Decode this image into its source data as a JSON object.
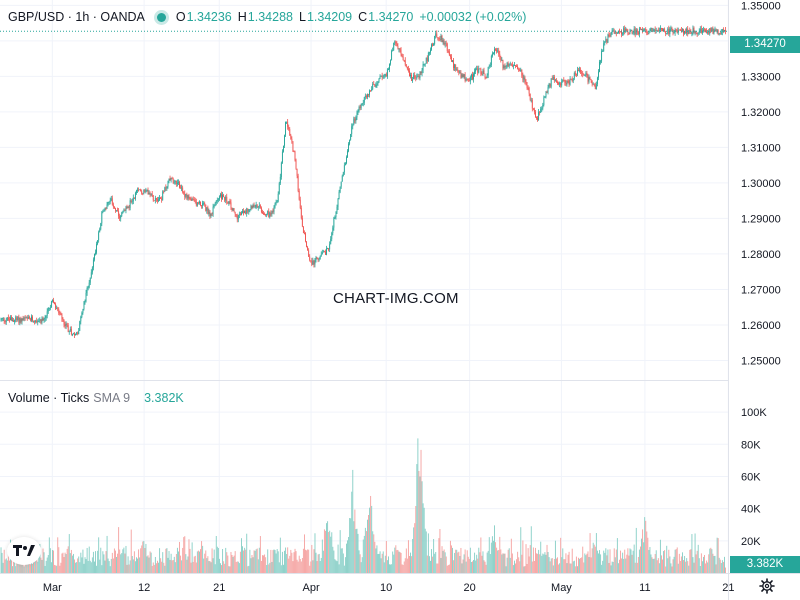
{
  "header": {
    "symbol": "GBP/USD · 1h · OANDA",
    "open_label": "O",
    "open": "1.34236",
    "high_label": "H",
    "high": "1.34288",
    "low_label": "L",
    "low": "1.34209",
    "close_label": "C",
    "close": "1.34270",
    "change": "+0.00032 (+0.02%)"
  },
  "volume_legend": {
    "label": "Volume · Ticks",
    "indicator": "SMA 9",
    "value": "3.382K"
  },
  "watermark": "CHART-IMG.COM",
  "last_price_tag": "1.34270",
  "last_volume_tag": "3.382K",
  "colors": {
    "up": "#26a69a",
    "down": "#ef5350",
    "grid": "#f0f3fa",
    "text": "#131722",
    "volume_up": "#8ad0c8",
    "volume_down": "#f5a5a3"
  },
  "chart_data": {
    "type": "candlestick",
    "title": "GBP/USD · 1h · OANDA",
    "price_axis": {
      "ylim": [
        1.2445,
        1.3515
      ],
      "ticks": [
        "1.25000",
        "1.26000",
        "1.27000",
        "1.28000",
        "1.29000",
        "1.30000",
        "1.31000",
        "1.32000",
        "1.33000",
        "1.34000",
        "1.35000"
      ]
    },
    "volume_axis": {
      "ylim": [
        0,
        115000
      ],
      "ticks": [
        "20K",
        "40K",
        "60K",
        "80K",
        "100K"
      ]
    },
    "x_ticks": [
      "Mar",
      "12",
      "21",
      "Apr",
      "10",
      "20",
      "May",
      "11",
      "21"
    ],
    "grid": true,
    "price_path": [
      {
        "x": "Feb 28",
        "y": 1.2615
      },
      {
        "x": "Mar 1",
        "y": 1.2665
      },
      {
        "x": "Mar 2",
        "y": 1.2625
      },
      {
        "x": "Mar 3",
        "y": 1.2585
      },
      {
        "x": "Mar 4",
        "y": 1.2575
      },
      {
        "x": "Mar 5",
        "y": 1.268
      },
      {
        "x": "Mar 6",
        "y": 1.279
      },
      {
        "x": "Mar 7",
        "y": 1.292
      },
      {
        "x": "Mar 8",
        "y": 1.295
      },
      {
        "x": "Mar 9",
        "y": 1.2905
      },
      {
        "x": "Mar 10",
        "y": 1.293
      },
      {
        "x": "Mar 11",
        "y": 1.297
      },
      {
        "x": "Mar 12",
        "y": 1.298
      },
      {
        "x": "Mar 13",
        "y": 1.296
      },
      {
        "x": "Mar 14",
        "y": 1.2955
      },
      {
        "x": "Mar 15",
        "y": 1.301
      },
      {
        "x": "Mar 16",
        "y": 1.3005
      },
      {
        "x": "Mar 17",
        "y": 1.296
      },
      {
        "x": "Mar 18",
        "y": 1.2945
      },
      {
        "x": "Mar 19",
        "y": 1.294
      },
      {
        "x": "Mar 20",
        "y": 1.291
      },
      {
        "x": "Mar 21",
        "y": 1.2965
      },
      {
        "x": "Mar 22",
        "y": 1.295
      },
      {
        "x": "Mar 23",
        "y": 1.2905
      },
      {
        "x": "Mar 24",
        "y": 1.2915
      },
      {
        "x": "Mar 25",
        "y": 1.294
      },
      {
        "x": "Mar 26",
        "y": 1.2925
      },
      {
        "x": "Mar 27",
        "y": 1.291
      },
      {
        "x": "Mar 28",
        "y": 1.295
      },
      {
        "x": "Mar 29",
        "y": 1.318
      },
      {
        "x": "Mar 30",
        "y": 1.308
      },
      {
        "x": "Mar 31",
        "y": 1.287
      },
      {
        "x": "Apr 1",
        "y": 1.277
      },
      {
        "x": "Apr 2",
        "y": 1.279
      },
      {
        "x": "Apr 3",
        "y": 1.281
      },
      {
        "x": "Apr 4",
        "y": 1.2925
      },
      {
        "x": "Apr 5",
        "y": 1.305
      },
      {
        "x": "Apr 6",
        "y": 1.317
      },
      {
        "x": "Apr 7",
        "y": 1.322
      },
      {
        "x": "Apr 8",
        "y": 1.326
      },
      {
        "x": "Apr 9",
        "y": 1.329
      },
      {
        "x": "Apr 10",
        "y": 1.33
      },
      {
        "x": "Apr 11",
        "y": 1.34
      },
      {
        "x": "Apr 12",
        "y": 1.335
      },
      {
        "x": "Apr 13",
        "y": 1.329
      },
      {
        "x": "Apr 14",
        "y": 1.3305
      },
      {
        "x": "Apr 15",
        "y": 1.3355
      },
      {
        "x": "Apr 16",
        "y": 1.342
      },
      {
        "x": "Apr 17",
        "y": 1.3395
      },
      {
        "x": "Apr 18",
        "y": 1.3335
      },
      {
        "x": "Apr 19",
        "y": 1.33
      },
      {
        "x": "Apr 20",
        "y": 1.329
      },
      {
        "x": "Apr 21",
        "y": 1.332
      },
      {
        "x": "Apr 22",
        "y": 1.33
      },
      {
        "x": "Apr 23",
        "y": 1.3385
      },
      {
        "x": "Apr 24",
        "y": 1.333
      },
      {
        "x": "Apr 25",
        "y": 1.333
      },
      {
        "x": "Apr 26",
        "y": 1.332
      },
      {
        "x": "Apr 27",
        "y": 1.326
      },
      {
        "x": "Apr 28",
        "y": 1.3175
      },
      {
        "x": "Apr 29",
        "y": 1.324
      },
      {
        "x": "Apr 30",
        "y": 1.33
      },
      {
        "x": "May 1",
        "y": 1.328
      },
      {
        "x": "May 2",
        "y": 1.3285
      },
      {
        "x": "May 3",
        "y": 1.332
      },
      {
        "x": "May 4",
        "y": 1.33
      },
      {
        "x": "May 5",
        "y": 1.3265
      },
      {
        "x": "May 6",
        "y": 1.3385
      },
      {
        "x": "May 7",
        "y": 1.3427
      }
    ],
    "volume_spikes": [
      {
        "x": "Apr 14",
        "y": 104000
      },
      {
        "x": "Apr 6",
        "y": 65000
      },
      {
        "x": "Apr 8",
        "y": 55000
      },
      {
        "x": "Apr 3",
        "y": 47000
      },
      {
        "x": "May 11",
        "y": 38000
      },
      {
        "x": "Apr 23",
        "y": 32000
      },
      {
        "x": "May 5",
        "y": 30000
      },
      {
        "x": "Mar 12",
        "y": 27000
      },
      {
        "x": "Mar 3",
        "y": 25000
      }
    ],
    "last_price": 1.3427,
    "last_volume": 3382
  }
}
